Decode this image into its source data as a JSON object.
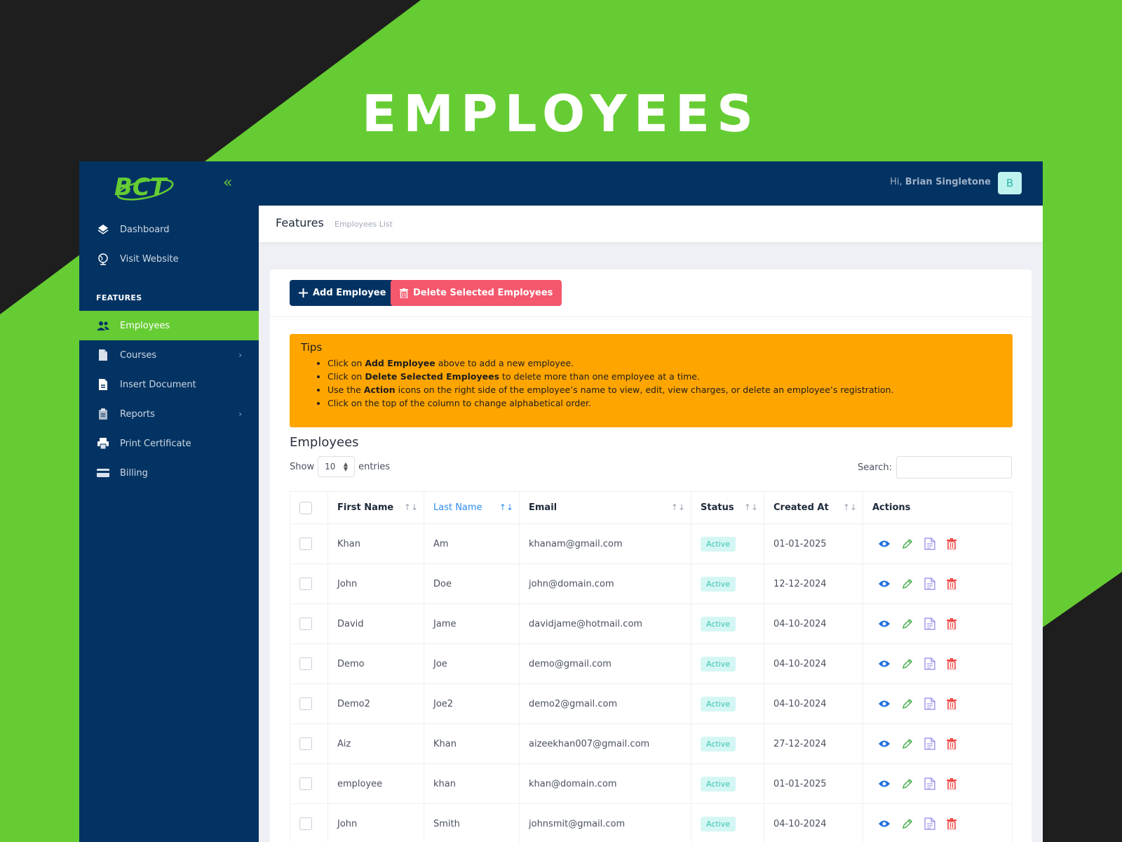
{
  "hero": {
    "title": "EMPLOYEES"
  },
  "brand": {
    "logo_text": "BCT"
  },
  "colors": {
    "accent": "#66cc33",
    "navy": "#033363",
    "danger": "#f5576c",
    "tips": "#ffa500",
    "active_badge": "#3cc1b4"
  },
  "topbar": {
    "greeting": "Hi,",
    "user_name": "Brian Singletone",
    "avatar_letter": "B"
  },
  "sidebar": {
    "items": [
      {
        "label": "Dashboard",
        "icon": "layers-icon"
      },
      {
        "label": "Visit Website",
        "icon": "globe-icon"
      }
    ],
    "section_label": "FEATURES",
    "feature_items": [
      {
        "label": "Employees",
        "icon": "users-icon",
        "active": true
      },
      {
        "label": "Courses",
        "icon": "file-icon",
        "has_submenu": true
      },
      {
        "label": "Insert Document",
        "icon": "document-icon"
      },
      {
        "label": "Reports",
        "icon": "clipboard-icon",
        "has_submenu": true
      },
      {
        "label": "Print Certificate",
        "icon": "printer-icon"
      },
      {
        "label": "Billing",
        "icon": "credit-card-icon"
      }
    ]
  },
  "subheader": {
    "title": "Features",
    "breadcrumb": "Employees List"
  },
  "toolbar": {
    "add_label": "Add Employee",
    "delete_label": "Delete Selected Employees"
  },
  "tips": {
    "title": "Tips",
    "items": [
      {
        "pre": "Click on ",
        "bold": "Add Employee",
        "post": " above to add a new employee."
      },
      {
        "pre": "Click on ",
        "bold": "Delete Selected Employees",
        "post": " to delete more than one employee at a time."
      },
      {
        "pre": "Use the ",
        "bold": "Action",
        "post": " icons on the right side of the employee’s name to view, edit, view charges, or delete an employee’s registration."
      },
      {
        "pre": "Click on the top of the column to change alphabetical order.",
        "bold": "",
        "post": ""
      }
    ]
  },
  "table": {
    "title": "Employees",
    "show_label": "Show",
    "page_size": "10",
    "entries_label": "entries",
    "search_label": "Search:",
    "search_value": "",
    "columns": [
      "First Name",
      "Last Name",
      "Email",
      "Status",
      "Created At",
      "Actions"
    ],
    "rows": [
      {
        "first": "Khan",
        "last": "Am",
        "email": "khanam@gmail.com",
        "status": "Active",
        "created": "01-01-2025"
      },
      {
        "first": "John",
        "last": "Doe",
        "email": "john@domain.com",
        "status": "Active",
        "created": "12-12-2024"
      },
      {
        "first": "David",
        "last": "Jame",
        "email": "davidjame@hotmail.com",
        "status": "Active",
        "created": "04-10-2024"
      },
      {
        "first": "Demo",
        "last": "Joe",
        "email": "demo@gmail.com",
        "status": "Active",
        "created": "04-10-2024"
      },
      {
        "first": "Demo2",
        "last": "Joe2",
        "email": "demo2@gmail.com",
        "status": "Active",
        "created": "04-10-2024"
      },
      {
        "first": "Aiz",
        "last": "Khan",
        "email": "aizeekhan007@gmail.com",
        "status": "Active",
        "created": "27-12-2024"
      },
      {
        "first": "employee",
        "last": "khan",
        "email": "khan@domain.com",
        "status": "Active",
        "created": "01-01-2025"
      },
      {
        "first": "John",
        "last": "Smith",
        "email": "johnsmit@gmail.com",
        "status": "Active",
        "created": "04-10-2024"
      }
    ]
  }
}
